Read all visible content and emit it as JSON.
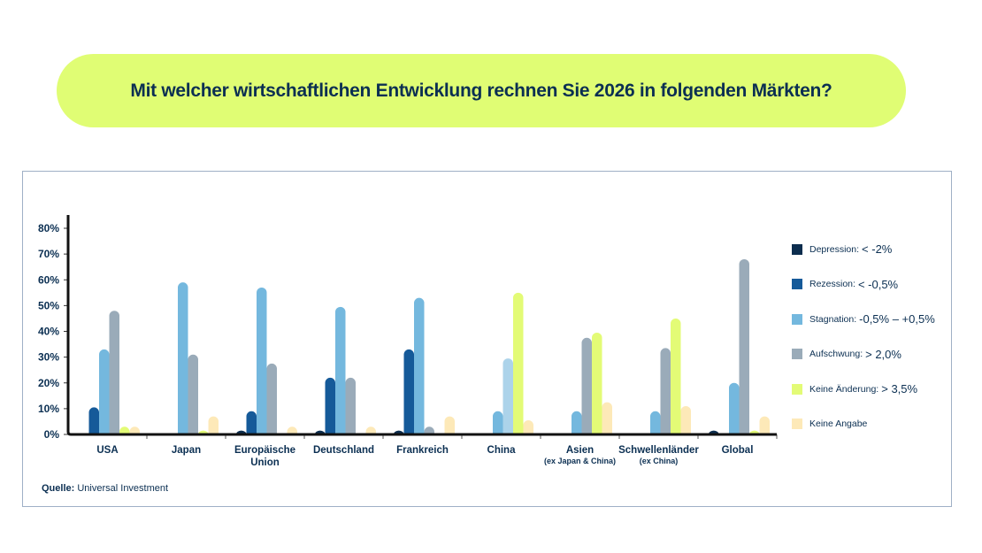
{
  "header": {
    "title": "Mit welcher wirtschaftlichen Entwicklung rechnen Sie 2026 in folgenden Märkten?"
  },
  "source": {
    "label": "Quelle:",
    "value": "Universal Investment"
  },
  "chart_data": {
    "type": "bar",
    "title": "Mit welcher wirtschaftlichen Entwicklung rechnen Sie 2026 in folgenden Märkten?",
    "xlabel": "",
    "ylabel": "",
    "ylim": [
      0,
      80
    ],
    "yticks": [
      0,
      10,
      20,
      30,
      40,
      50,
      60,
      70,
      80
    ],
    "ytick_labels": [
      "0%",
      "10%",
      "20%",
      "30%",
      "40%",
      "50%",
      "60%",
      "70%",
      "80%"
    ],
    "grid": false,
    "legend_position": "right",
    "categories": [
      {
        "label": "USA",
        "sub": ""
      },
      {
        "label": "Japan",
        "sub": ""
      },
      {
        "label": "Europäische|Union",
        "sub": ""
      },
      {
        "label": "Deutschland",
        "sub": ""
      },
      {
        "label": "Frankreich",
        "sub": ""
      },
      {
        "label": "China",
        "sub": ""
      },
      {
        "label": "Asien",
        "sub": "(ex Japan & China)"
      },
      {
        "label": "Schwellenländer",
        "sub": "(ex China)"
      },
      {
        "label": "Global",
        "sub": ""
      }
    ],
    "series": [
      {
        "name": "Depression:",
        "range": "< -2%",
        "color": "#0c2d4e",
        "values": [
          0,
          0,
          1.5,
          1.5,
          1.5,
          0,
          0,
          0,
          1.5
        ]
      },
      {
        "name": "Rezession:",
        "range": "< -0,5%",
        "color": "#155a99",
        "values": [
          10.5,
          0,
          9,
          22,
          33,
          0,
          0,
          0,
          0
        ]
      },
      {
        "name": "Stagnation:",
        "range": "-0,5% – +0,5%",
        "color": "#74b8de",
        "values": [
          33,
          59,
          57,
          49.5,
          53,
          9,
          9,
          9,
          20
        ]
      },
      {
        "name": "Aufschwung:",
        "range": "> 2,0%",
        "color": "#9aabb9",
        "values": [
          48,
          31,
          27.5,
          22,
          3,
          29.5,
          37.5,
          33.5,
          68
        ]
      },
      {
        "name": "Keine Änderung:",
        "range": "> 3,5%",
        "color": "#e3fb76",
        "values": [
          3,
          1.5,
          0,
          0,
          0,
          55,
          39.5,
          45,
          1.5
        ]
      },
      {
        "name": "Keine Angabe",
        "range": "",
        "color": "#fde9b8",
        "values": [
          3,
          7,
          3,
          3,
          7,
          5.5,
          12.5,
          11,
          7
        ]
      }
    ],
    "special_colors": {
      "China.Aufschwung": "#acd3ea"
    }
  }
}
